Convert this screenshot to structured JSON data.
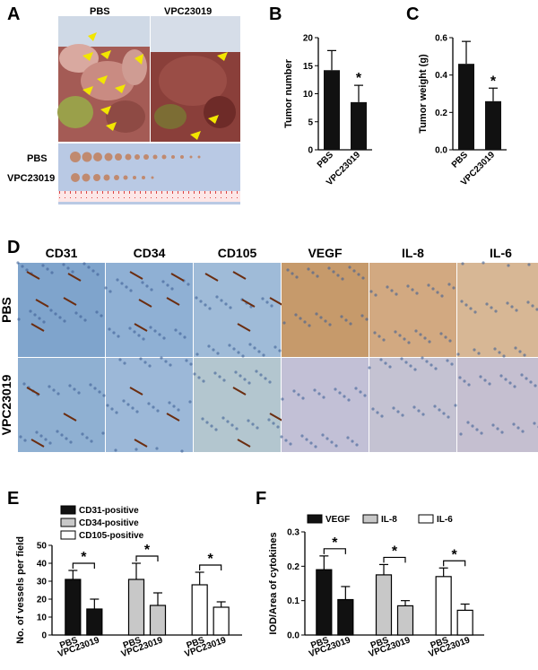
{
  "panels": {
    "A": "A",
    "B": "B",
    "C": "C",
    "D": "D",
    "E": "E",
    "F": "F"
  },
  "photo_A": {
    "label_left": "PBS",
    "label_right": "VPC23019",
    "row1": "PBS",
    "row2": "VPC23019"
  },
  "histology": {
    "columns": [
      "CD31",
      "CD34",
      "CD105",
      "VEGF",
      "IL-8",
      "IL-6"
    ],
    "rows": [
      "PBS",
      "VPC23019"
    ]
  },
  "colors": {
    "bar_black": "#111111",
    "bar_gray": "#c8c8c8",
    "bar_white": "#ffffff",
    "arrow_yellow": "#f2e600",
    "mesentery_bg": "#b9c9e4"
  },
  "chart_data": [
    {
      "id": "B",
      "type": "bar",
      "categories": [
        "PBS",
        "VPC23019"
      ],
      "values": [
        14.2,
        8.5
      ],
      "errors": [
        3.5,
        3.0
      ],
      "ylabel": "Tumor number",
      "ylim": [
        0,
        20
      ],
      "yticks": [
        0,
        5,
        10,
        15,
        20
      ],
      "significance": "*"
    },
    {
      "id": "C",
      "type": "bar",
      "categories": [
        "PBS",
        "VPC23019"
      ],
      "values": [
        0.46,
        0.26
      ],
      "errors": [
        0.12,
        0.07
      ],
      "ylabel": "Tumor weight (g)",
      "ylim": [
        0,
        0.6
      ],
      "yticks": [
        "0.0",
        "0.2",
        "0.4",
        "0.6"
      ],
      "significance": "*"
    },
    {
      "id": "E",
      "type": "bar",
      "groups": [
        "PBS",
        "VPC23019",
        "PBS",
        "VPC23019",
        "PBS",
        "VPC23019"
      ],
      "series": [
        {
          "name": "CD31-positive",
          "values": [
            31,
            14.5
          ],
          "errors": [
            5,
            5.5
          ],
          "color": "#111111"
        },
        {
          "name": "CD34-positive",
          "values": [
            31,
            16.5
          ],
          "errors": [
            9,
            7
          ],
          "color": "#c8c8c8"
        },
        {
          "name": "CD105-positive",
          "values": [
            28,
            15.5
          ],
          "errors": [
            7,
            3
          ],
          "color": "#ffffff"
        }
      ],
      "ylabel": "No. of vessels per field",
      "ylim": [
        0,
        50
      ],
      "yticks": [
        0,
        10,
        20,
        30,
        40,
        50
      ],
      "significance": "*"
    },
    {
      "id": "F",
      "type": "bar",
      "groups": [
        "PBS",
        "VPC23019",
        "PBS",
        "VPC23019",
        "PBS",
        "VPC23019"
      ],
      "series": [
        {
          "name": "VEGF",
          "values": [
            0.19,
            0.103
          ],
          "errors": [
            0.04,
            0.038
          ],
          "color": "#111111"
        },
        {
          "name": "IL-8",
          "values": [
            0.175,
            0.085
          ],
          "errors": [
            0.03,
            0.015
          ],
          "color": "#c8c8c8"
        },
        {
          "name": "IL-6",
          "values": [
            0.17,
            0.072
          ],
          "errors": [
            0.025,
            0.018
          ],
          "color": "#ffffff"
        }
      ],
      "ylabel": "IOD/Area of cytokines",
      "ylim": [
        0,
        0.3
      ],
      "yticks": [
        "0.0",
        "0.1",
        "0.2",
        "0.3"
      ],
      "significance": "*"
    }
  ]
}
